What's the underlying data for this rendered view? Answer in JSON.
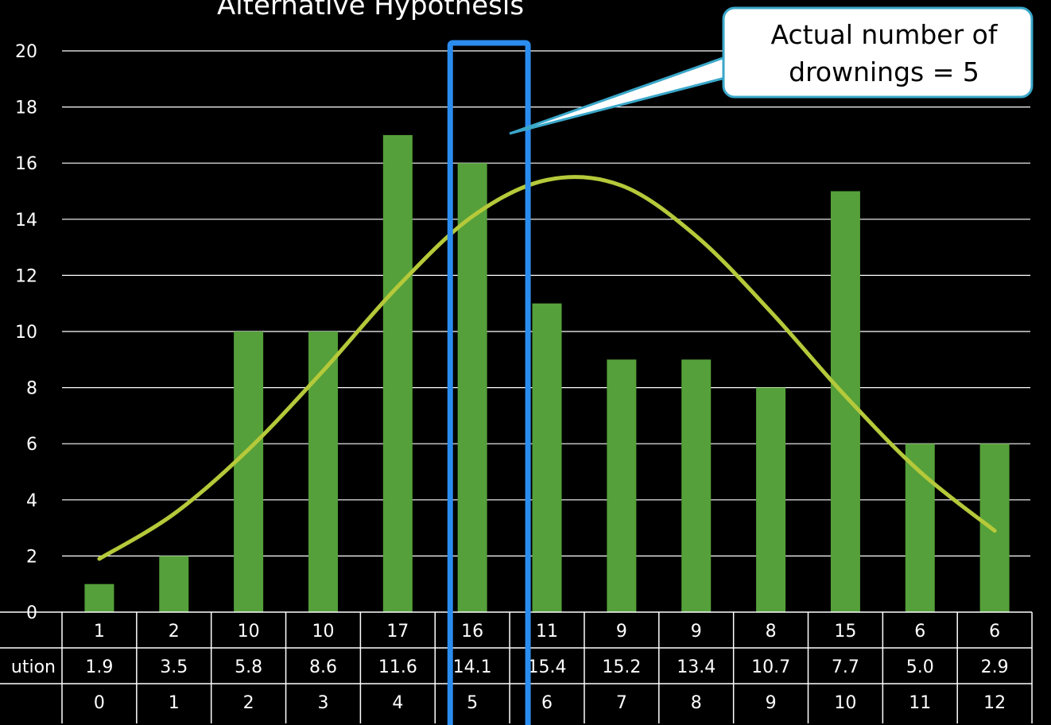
{
  "chart_data": {
    "type": "bar",
    "title": "Alternative Hypothesis",
    "ylim": [
      0,
      20
    ],
    "y_ticks": [
      0,
      2,
      4,
      6,
      8,
      10,
      12,
      14,
      16,
      18,
      20
    ],
    "categories": [
      "0",
      "1",
      "2",
      "3",
      "4",
      "5",
      "6",
      "7",
      "8",
      "9",
      "10",
      "11",
      "12"
    ],
    "series": [
      {
        "kind": "bar",
        "color": "#55a03a",
        "values": [
          1,
          2,
          10,
          10,
          17,
          16,
          11,
          9,
          9,
          8,
          15,
          6,
          6
        ]
      },
      {
        "kind": "line",
        "color": "#b5c93a",
        "values": [
          1.9,
          3.5,
          5.8,
          8.6,
          11.6,
          14.1,
          15.4,
          15.2,
          13.4,
          10.7,
          7.7,
          5.0,
          2.9
        ]
      }
    ],
    "table": {
      "row_labels": [
        "",
        "ution",
        ""
      ],
      "rows": [
        [
          "1",
          "2",
          "10",
          "10",
          "17",
          "16",
          "11",
          "9",
          "9",
          "8",
          "15",
          "6",
          "6"
        ],
        [
          "1.9",
          "3.5",
          "5.8",
          "8.6",
          "11.6",
          "14.1",
          "15.4",
          "15.2",
          "13.4",
          "10.7",
          "7.7",
          "5.0",
          "2.9"
        ],
        [
          "0",
          "1",
          "2",
          "3",
          "4",
          "5",
          "6",
          "7",
          "8",
          "9",
          "10",
          "11",
          "12"
        ]
      ]
    },
    "highlight_category": "5",
    "highlight_color": "#2b8cf0",
    "callout": {
      "lines": [
        "Actual number of",
        "drownings = 5"
      ],
      "border_color": "#3aa7c9"
    },
    "grid": true
  }
}
